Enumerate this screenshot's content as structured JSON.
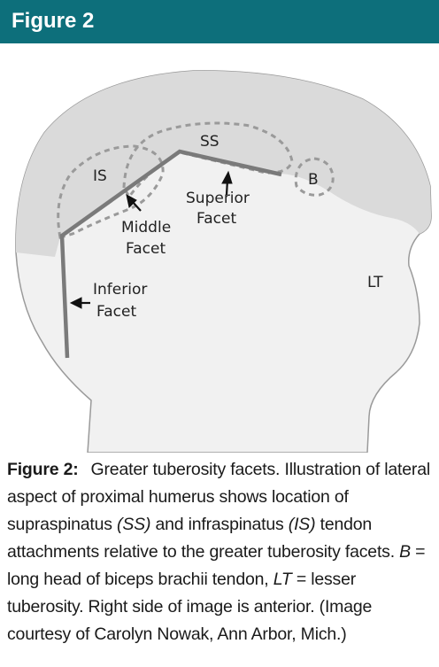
{
  "header": {
    "title": "Figure 2"
  },
  "illustration": {
    "labels": {
      "ss": "SS",
      "is": "IS",
      "b": "B",
      "lt": "LT",
      "superior_facet_line1": "Superior",
      "superior_facet_line2": "Facet",
      "middle_facet_line1": "Middle",
      "middle_facet_line2": "Facet",
      "inferior_facet_line1": "Inferior",
      "inferior_facet_line2": "Facet"
    },
    "colors": {
      "bone_fill": "#f1f1f1",
      "head_fill": "#dadada",
      "outline": "#9a9a9a",
      "facet_line": "#7a7a7a",
      "arrow": "#111111"
    }
  },
  "caption": {
    "label": "Figure 2:",
    "t1": "Greater tuberosity facets. Illustration of lateral aspect of proximal humerus shows location of supraspinatus ",
    "ss": "(SS)",
    "t2": " and infraspinatus ",
    "is": "(IS)",
    "t3": " tendon attachments relative to the greater tuberosity facets. ",
    "b": "B",
    "t4": " = long head of biceps brachii tendon, ",
    "lt": "LT",
    "t5": " = lesser tuberosity. Right side of image is anterior. (Image courtesy of Carolyn Nowak, Ann Arbor, Mich.)"
  }
}
